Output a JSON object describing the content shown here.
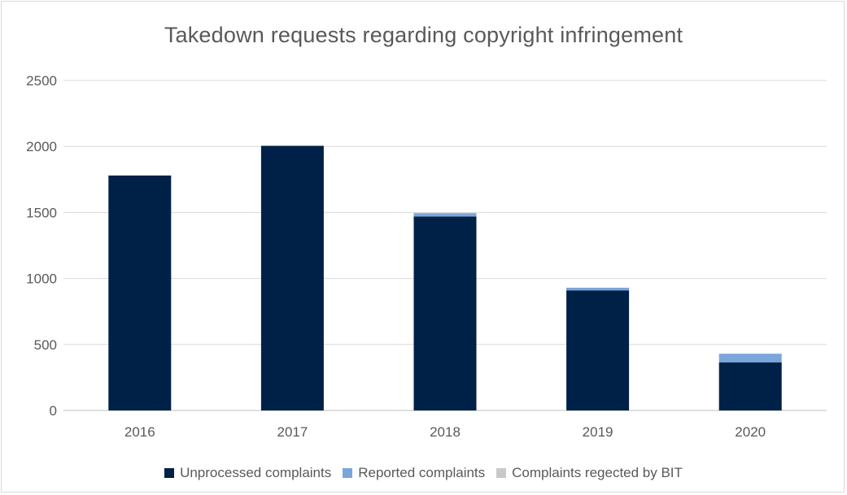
{
  "chart_data": {
    "type": "bar",
    "stacked": true,
    "title": "Takedown requests regarding copyright infringement",
    "xlabel": "",
    "ylabel": "",
    "categories": [
      "2016",
      "2017",
      "2018",
      "2019",
      "2020"
    ],
    "ylim": [
      0,
      2500
    ],
    "yticks": [
      0,
      500,
      1000,
      1500,
      2000,
      2500
    ],
    "grid": true,
    "legend_position": "bottom",
    "series": [
      {
        "name": "Unprocessed complaints",
        "color": "#002147",
        "values": [
          1780,
          2005,
          1470,
          910,
          365
        ]
      },
      {
        "name": "Reported complaints",
        "color": "#7aa6db",
        "values": [
          0,
          0,
          25,
          20,
          65
        ]
      },
      {
        "name": "Complaints regected by BIT",
        "color": "#c9c9c9",
        "values": [
          0,
          0,
          0,
          0,
          0
        ]
      }
    ]
  }
}
